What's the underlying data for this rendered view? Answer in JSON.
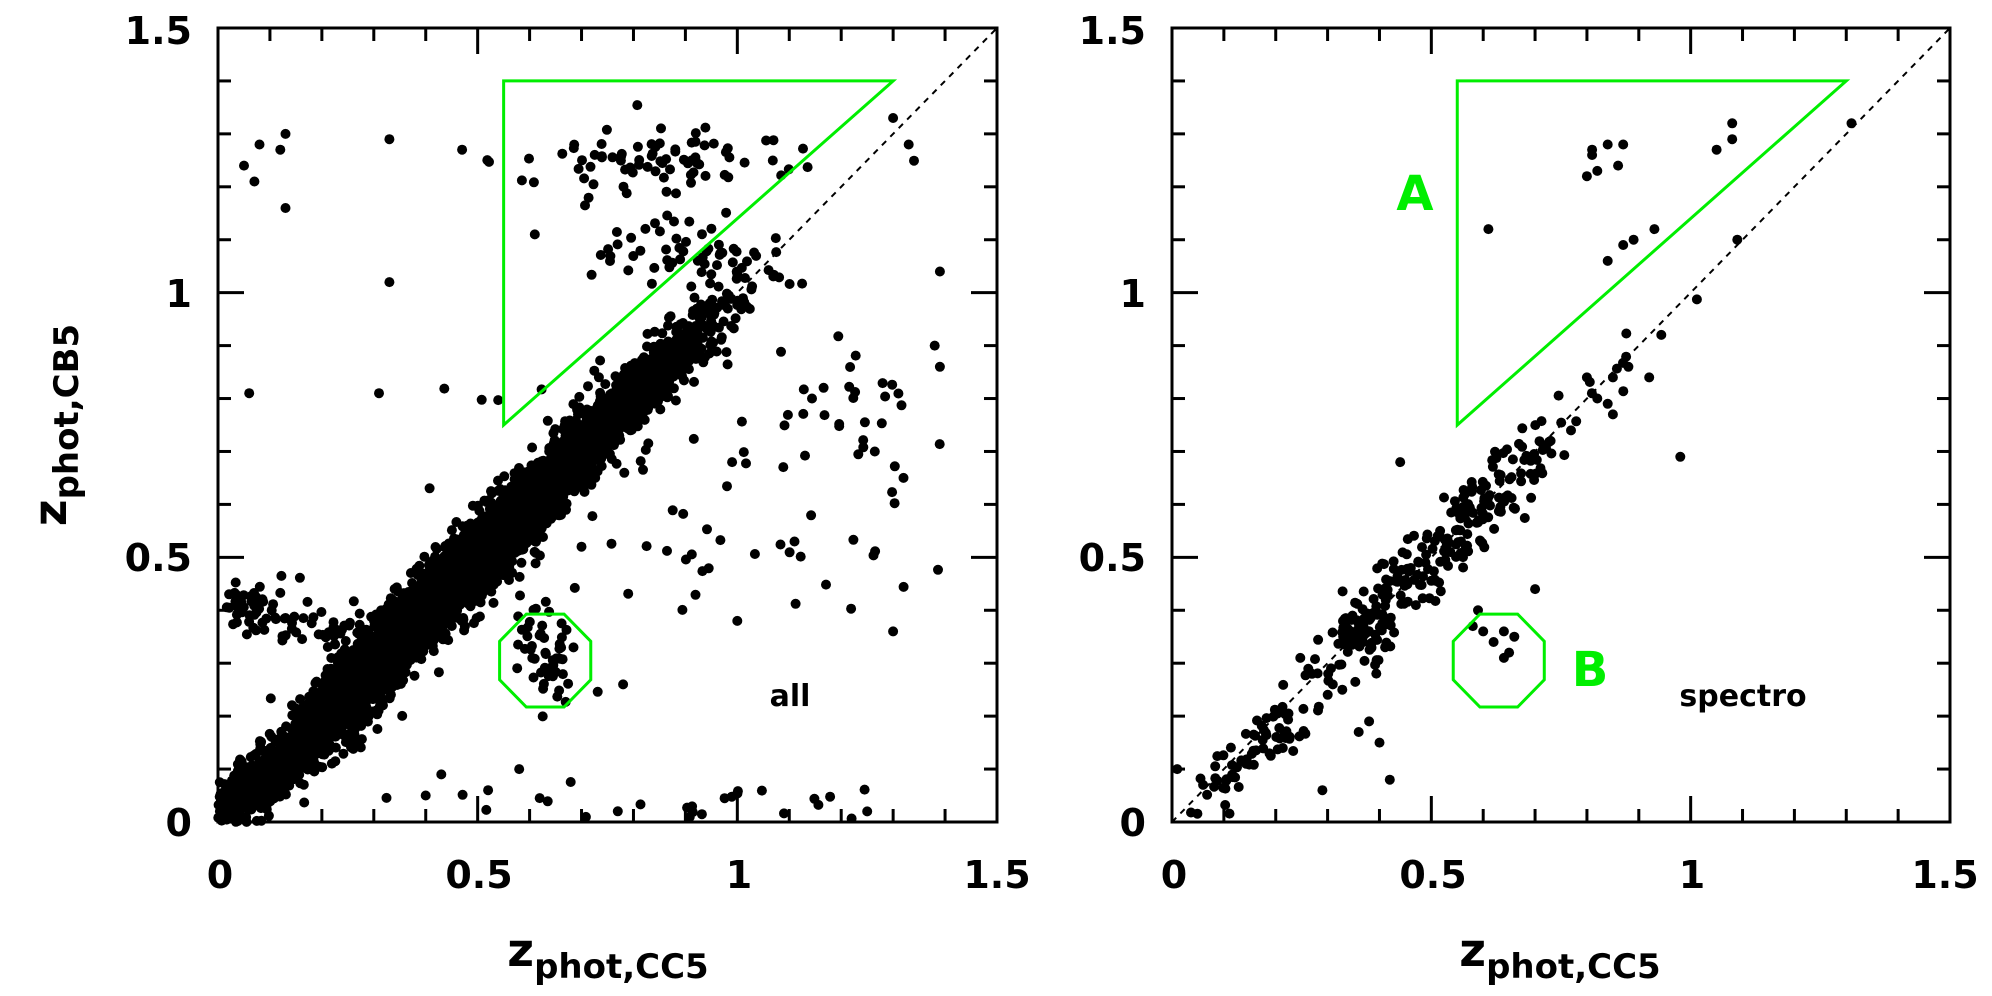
{
  "chart_data": [
    {
      "type": "scatter",
      "panel_label": "all",
      "xlabel": {
        "base": "z",
        "sub": "phot,CC5"
      },
      "ylabel": {
        "base": "z",
        "sub": "phot,CB5"
      },
      "xlim": [
        0,
        1.5
      ],
      "ylim": [
        0,
        1.5
      ],
      "x_ticks": [
        "0",
        "0.5",
        "1",
        "1.5"
      ],
      "y_ticks": [
        "0",
        "0.5",
        "1",
        "1.5"
      ],
      "identity_line": true,
      "marker_color": "#000000",
      "region_color": "#00ee00",
      "region_A_vertices": [
        [
          0.55,
          0.75
        ],
        [
          0.55,
          1.4
        ],
        [
          1.3,
          1.4
        ]
      ],
      "region_B_center": [
        0.63,
        0.305
      ],
      "region_B_radius": 0.095,
      "clusters": [
        {
          "cx": 0.45,
          "cy": 0.45,
          "sx": 0.16,
          "sy": 0.16,
          "spread": 0.03,
          "n": 3500
        },
        {
          "cx": 0.09,
          "cy": 0.08,
          "sx": 0.07,
          "sy": 0.05,
          "spread": 0.02,
          "n": 900
        },
        {
          "cx": 0.78,
          "cy": 0.79,
          "sx": 0.1,
          "sy": 0.09,
          "spread": 0.028,
          "n": 700
        },
        {
          "cx": 0.31,
          "cy": 0.28,
          "sx": 0.04,
          "sy": 0.07,
          "spread": 0.03,
          "n": 250
        },
        {
          "cx": 0.63,
          "cy": 0.33,
          "sx": 0.04,
          "sy": 0.045,
          "spread": 0.0,
          "n": 55
        },
        {
          "cx": 0.08,
          "cy": 0.41,
          "sx": 0.04,
          "sy": 0.025,
          "spread": 0.0,
          "n": 50
        },
        {
          "cx": 0.22,
          "cy": 0.36,
          "sx": 0.07,
          "sy": 0.02,
          "spread": 0.0,
          "n": 40
        },
        {
          "cx": 0.85,
          "cy": 1.25,
          "sx": 0.15,
          "sy": 0.035,
          "spread": 0.0,
          "n": 80
        },
        {
          "cx": 0.92,
          "cy": 1.06,
          "sx": 0.1,
          "sy": 0.04,
          "spread": 0.0,
          "n": 60
        },
        {
          "cx": 1.22,
          "cy": 0.78,
          "sx": 0.07,
          "sy": 0.06,
          "spread": 0.0,
          "n": 25
        },
        {
          "cx": 0.9,
          "cy": 0.03,
          "sx": 0.3,
          "sy": 0.025,
          "spread": 0.0,
          "n": 30
        },
        {
          "cx": 0.95,
          "cy": 0.6,
          "sx": 0.25,
          "sy": 0.15,
          "spread": 0.0,
          "n": 60
        }
      ],
      "points": [
        [
          0.05,
          1.24
        ],
        [
          0.07,
          1.21
        ],
        [
          0.08,
          1.28
        ],
        [
          0.12,
          1.27
        ],
        [
          0.13,
          1.3
        ],
        [
          0.13,
          1.16
        ],
        [
          0.33,
          1.29
        ],
        [
          0.33,
          1.02
        ],
        [
          0.47,
          1.27
        ],
        [
          0.06,
          0.81
        ],
        [
          0.31,
          0.81
        ],
        [
          0.55,
          0.55
        ],
        [
          0.7,
          0.52
        ],
        [
          1.0,
          0.38
        ],
        [
          1.11,
          0.53
        ],
        [
          0.99,
          0.68
        ],
        [
          0.78,
          0.26
        ],
        [
          1.3,
          0.36
        ],
        [
          0.61,
          1.11
        ],
        [
          1.39,
          1.04
        ],
        [
          1.38,
          0.9
        ],
        [
          1.39,
          0.86
        ],
        [
          1.32,
          0.65
        ],
        [
          1.33,
          1.28
        ],
        [
          1.3,
          1.33
        ],
        [
          0.4,
          0.05
        ],
        [
          0.43,
          0.09
        ],
        [
          0.52,
          0.06
        ],
        [
          0.58,
          0.1
        ],
        [
          1.25,
          0.02
        ]
      ]
    },
    {
      "type": "scatter",
      "panel_label": "spectro",
      "xlabel": {
        "base": "z",
        "sub": "phot,CC5"
      },
      "ylabel": {
        "base": "",
        "sub": ""
      },
      "xlim": [
        0,
        1.5
      ],
      "ylim": [
        0,
        1.5
      ],
      "x_ticks": [
        "0",
        "0.5",
        "1",
        "1.5"
      ],
      "y_ticks": [
        "0",
        "0.5",
        "1",
        "1.5"
      ],
      "identity_line": true,
      "marker_color": "#000000",
      "region_color": "#00ee00",
      "region_A_label": "A",
      "region_B_label": "B",
      "region_A_vertices": [
        [
          0.55,
          0.75
        ],
        [
          0.55,
          1.4
        ],
        [
          1.3,
          1.4
        ]
      ],
      "region_B_center": [
        0.63,
        0.305
      ],
      "region_B_radius": 0.095,
      "clusters": [
        {
          "cx": 0.5,
          "cy": 0.5,
          "sx": 0.15,
          "sy": 0.15,
          "spread": 0.035,
          "n": 260
        },
        {
          "cx": 0.15,
          "cy": 0.12,
          "sx": 0.07,
          "sy": 0.05,
          "spread": 0.025,
          "n": 60
        },
        {
          "cx": 0.37,
          "cy": 0.37,
          "sx": 0.03,
          "sy": 0.03,
          "spread": 0.0,
          "n": 40
        }
      ],
      "points": [
        [
          0.61,
          1.12
        ],
        [
          0.8,
          1.22
        ],
        [
          0.81,
          1.26
        ],
        [
          0.81,
          1.27
        ],
        [
          0.84,
          1.28
        ],
        [
          0.82,
          1.23
        ],
        [
          0.86,
          1.24
        ],
        [
          0.87,
          1.28
        ],
        [
          0.84,
          1.06
        ],
        [
          0.87,
          1.09
        ],
        [
          0.89,
          1.1
        ],
        [
          0.93,
          1.12
        ],
        [
          1.05,
          1.27
        ],
        [
          1.08,
          1.32
        ],
        [
          1.08,
          1.29
        ],
        [
          1.31,
          1.32
        ],
        [
          1.09,
          1.1
        ],
        [
          0.98,
          0.69
        ],
        [
          0.92,
          0.84
        ],
        [
          0.88,
          0.86
        ],
        [
          0.85,
          0.84
        ],
        [
          0.84,
          0.79
        ],
        [
          0.85,
          0.77
        ],
        [
          0.82,
          0.8
        ],
        [
          0.8,
          0.84
        ],
        [
          0.59,
          0.4
        ],
        [
          0.6,
          0.36
        ],
        [
          0.58,
          0.37
        ],
        [
          0.62,
          0.34
        ],
        [
          0.64,
          0.36
        ],
        [
          0.66,
          0.35
        ],
        [
          0.64,
          0.31
        ],
        [
          0.65,
          0.32
        ],
        [
          0.7,
          0.44
        ],
        [
          0.42,
          0.08
        ],
        [
          0.4,
          0.15
        ],
        [
          0.38,
          0.19
        ],
        [
          0.36,
          0.17
        ],
        [
          0.29,
          0.06
        ],
        [
          0.01,
          0.1
        ],
        [
          0.06,
          0.07
        ],
        [
          0.31,
          0.26
        ],
        [
          0.27,
          0.28
        ],
        [
          0.33,
          0.35
        ],
        [
          0.44,
          0.68
        ]
      ]
    }
  ]
}
